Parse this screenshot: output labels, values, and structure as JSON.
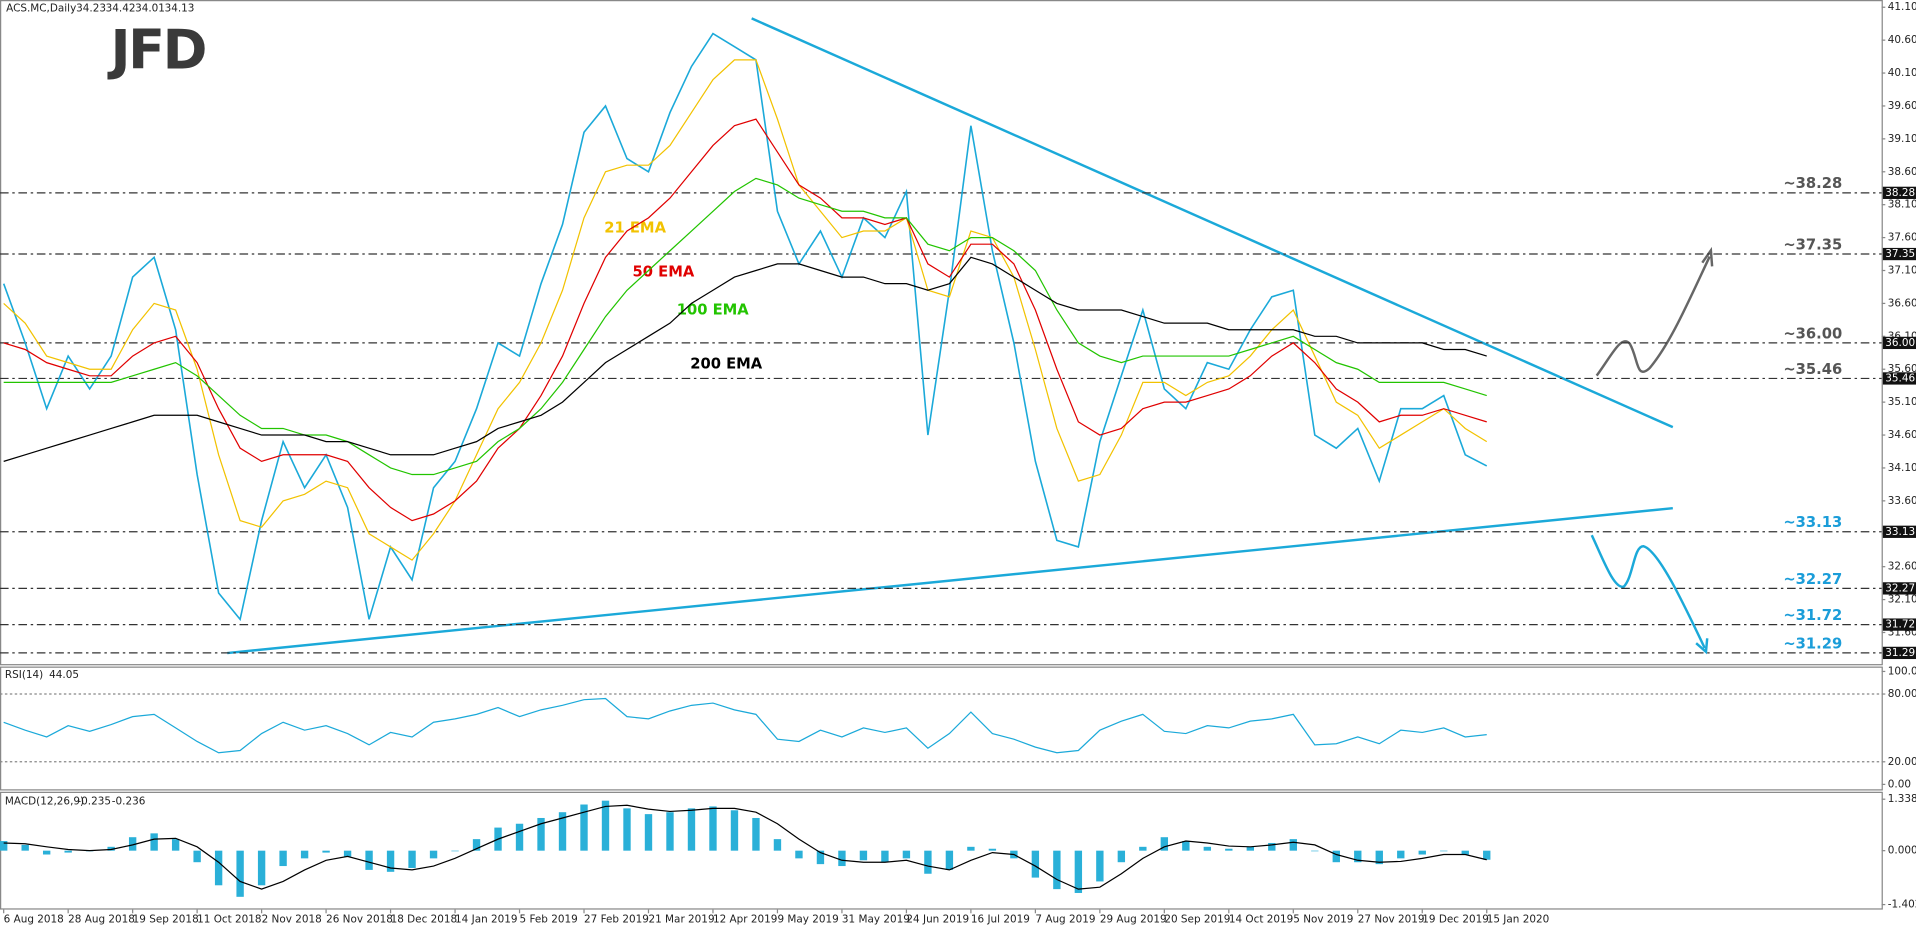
{
  "chart_data": [
    {
      "type": "line",
      "title": "ACS.MC,Daily",
      "logo": "JFD",
      "last_bar": {
        "open": 34.23,
        "high": 34.42,
        "low": 34.01,
        "close": 34.13
      },
      "categories": [
        "6 Aug 2018",
        null,
        null,
        "28 Aug 2018",
        null,
        null,
        "19 Sep 2018",
        null,
        null,
        "11 Oct 2018",
        null,
        null,
        "2 Nov 2018",
        null,
        null,
        "26 Nov 2018",
        null,
        null,
        "18 Dec 2018",
        null,
        null,
        "14 Jan 2019",
        null,
        null,
        "5 Feb 2019",
        null,
        null,
        "27 Feb 2019",
        null,
        null,
        "21 Mar 2019",
        null,
        null,
        "12 Apr 2019",
        null,
        null,
        "9 May 2019",
        null,
        null,
        "31 May 2019",
        null,
        null,
        "24 Jun 2019",
        null,
        null,
        "16 Jul 2019",
        null,
        null,
        "7 Aug 2019",
        null,
        null,
        "29 Aug 2019",
        null,
        null,
        "20 Sep 2019",
        null,
        null,
        "14 Oct 2019",
        null,
        null,
        "5 Nov 2019",
        null,
        null,
        "27 Nov 2019",
        null,
        null,
        "19 Dec 2019",
        null,
        null,
        "15 Jan 2020"
      ],
      "values": [
        36.9,
        36.0,
        35.0,
        35.8,
        35.3,
        35.8,
        37.0,
        37.3,
        36.2,
        34.0,
        32.2,
        31.8,
        33.3,
        34.5,
        33.8,
        34.3,
        33.5,
        31.8,
        32.9,
        32.4,
        33.8,
        34.2,
        35.0,
        36.0,
        35.8,
        36.9,
        37.8,
        39.2,
        39.6,
        38.8,
        38.6,
        39.5,
        40.2,
        40.7,
        40.5,
        40.3,
        38.0,
        37.2,
        37.7,
        37.0,
        37.9,
        37.6,
        38.3,
        34.6,
        36.8,
        39.3,
        37.4,
        36.0,
        34.2,
        33.0,
        32.9,
        34.5,
        35.5,
        36.5,
        35.3,
        35.0,
        35.7,
        35.6,
        36.2,
        36.7,
        36.8,
        34.6,
        34.4,
        34.7,
        33.9,
        35.0,
        35.0,
        35.2,
        34.3,
        34.13
      ],
      "color": "#1ba9d9",
      "series": [
        {
          "name": "21 EMA",
          "color": "#f2c200",
          "values": [
            36.6,
            36.3,
            35.8,
            35.7,
            35.6,
            35.6,
            36.2,
            36.6,
            36.5,
            35.6,
            34.3,
            33.3,
            33.2,
            33.6,
            33.7,
            33.9,
            33.8,
            33.1,
            32.9,
            32.7,
            33.1,
            33.6,
            34.3,
            35.0,
            35.4,
            36.0,
            36.8,
            37.9,
            38.6,
            38.7,
            38.7,
            39.0,
            39.5,
            40.0,
            40.3,
            40.3,
            39.4,
            38.4,
            38.0,
            37.6,
            37.7,
            37.7,
            37.9,
            36.8,
            36.7,
            37.7,
            37.6,
            37.0,
            35.9,
            34.7,
            33.9,
            34.0,
            34.6,
            35.4,
            35.4,
            35.2,
            35.4,
            35.5,
            35.8,
            36.2,
            36.5,
            35.8,
            35.1,
            34.9,
            34.4,
            34.6,
            34.8,
            35.0,
            34.7,
            34.5
          ]
        },
        {
          "name": "50 EMA",
          "color": "#e00000",
          "values": [
            36.0,
            35.9,
            35.7,
            35.6,
            35.5,
            35.5,
            35.8,
            36.0,
            36.1,
            35.7,
            35.0,
            34.4,
            34.2,
            34.3,
            34.3,
            34.3,
            34.2,
            33.8,
            33.5,
            33.3,
            33.4,
            33.6,
            33.9,
            34.4,
            34.7,
            35.2,
            35.8,
            36.6,
            37.3,
            37.7,
            37.9,
            38.2,
            38.6,
            39.0,
            39.3,
            39.4,
            38.9,
            38.4,
            38.2,
            37.9,
            37.9,
            37.8,
            37.9,
            37.2,
            37.0,
            37.5,
            37.5,
            37.2,
            36.5,
            35.6,
            34.8,
            34.6,
            34.7,
            35.0,
            35.1,
            35.1,
            35.2,
            35.3,
            35.5,
            35.8,
            36.0,
            35.7,
            35.3,
            35.1,
            34.8,
            34.9,
            34.9,
            35.0,
            34.9,
            34.8
          ]
        },
        {
          "name": "100 EMA",
          "color": "#22c400",
          "values": [
            35.4,
            35.4,
            35.4,
            35.4,
            35.4,
            35.4,
            35.5,
            35.6,
            35.7,
            35.5,
            35.2,
            34.9,
            34.7,
            34.7,
            34.6,
            34.6,
            34.5,
            34.3,
            34.1,
            34.0,
            34.0,
            34.1,
            34.2,
            34.5,
            34.7,
            35.0,
            35.4,
            35.9,
            36.4,
            36.8,
            37.1,
            37.4,
            37.7,
            38.0,
            38.3,
            38.5,
            38.4,
            38.2,
            38.1,
            38.0,
            38.0,
            37.9,
            37.9,
            37.5,
            37.4,
            37.6,
            37.6,
            37.4,
            37.1,
            36.5,
            36.0,
            35.8,
            35.7,
            35.8,
            35.8,
            35.8,
            35.8,
            35.8,
            35.9,
            36.0,
            36.1,
            35.9,
            35.7,
            35.6,
            35.4,
            35.4,
            35.4,
            35.4,
            35.3,
            35.2
          ]
        },
        {
          "name": "200 EMA",
          "color": "#000000",
          "values": [
            34.2,
            34.3,
            34.4,
            34.5,
            34.6,
            34.7,
            34.8,
            34.9,
            34.9,
            34.9,
            34.8,
            34.7,
            34.6,
            34.6,
            34.6,
            34.5,
            34.5,
            34.4,
            34.3,
            34.3,
            34.3,
            34.4,
            34.5,
            34.7,
            34.8,
            34.9,
            35.1,
            35.4,
            35.7,
            35.9,
            36.1,
            36.3,
            36.6,
            36.8,
            37.0,
            37.1,
            37.2,
            37.2,
            37.1,
            37.0,
            37.0,
            36.9,
            36.9,
            36.8,
            36.9,
            37.3,
            37.2,
            37.0,
            36.8,
            36.6,
            36.5,
            36.5,
            36.5,
            36.4,
            36.3,
            36.3,
            36.3,
            36.2,
            36.2,
            36.2,
            36.2,
            36.1,
            36.1,
            36.0,
            36.0,
            36.0,
            36.0,
            35.9,
            35.9,
            35.8
          ]
        }
      ],
      "levels": [
        {
          "value": 38.28,
          "label": "~38.28",
          "axis_label": "38.28",
          "color": "#555555"
        },
        {
          "value": 37.35,
          "label": "~37.35",
          "axis_label": "37.35",
          "color": "#555555"
        },
        {
          "value": 36,
          "label": "~36.00",
          "axis_label": "36.00",
          "color": "#555555"
        },
        {
          "value": 35.46,
          "label": "~35.46",
          "axis_label": "35.46",
          "color": "#555555"
        },
        {
          "value": 33.13,
          "label": "~33.13",
          "axis_label": "33.13",
          "color": "#1b9dd9"
        },
        {
          "value": 32.27,
          "label": "~32.27",
          "axis_label": "32.27",
          "color": "#1b9dd9"
        },
        {
          "value": 31.72,
          "label": "~31.72",
          "axis_label": "31.72",
          "color": "#1b9dd9"
        },
        {
          "value": 31.29,
          "label": "~31.29",
          "axis_label": "31.29",
          "color": "#1b9dd9"
        }
      ],
      "ylim": [
        31.12,
        41.21
      ],
      "yticks": [
        {
          "value": 41.1,
          "label": "41.10"
        },
        {
          "value": 40.6,
          "label": "40.60"
        },
        {
          "value": 40.1,
          "label": "40.10"
        },
        {
          "value": 39.6,
          "label": "39.60"
        },
        {
          "value": 39.1,
          "label": "39.10"
        },
        {
          "value": 38.6,
          "label": "38.60"
        },
        {
          "value": 38.1,
          "label": "38.10"
        },
        {
          "value": 37.6,
          "label": "37.60"
        },
        {
          "value": 37.1,
          "label": "37.10"
        },
        {
          "value": 36.6,
          "label": "36.60"
        },
        {
          "value": 36.1,
          "label": "36.10"
        },
        {
          "value": 35.6,
          "label": "35.60"
        },
        {
          "value": 35.1,
          "label": "35.10"
        },
        {
          "value": 34.6,
          "label": "34.60"
        },
        {
          "value": 34.1,
          "label": "34.10"
        },
        {
          "value": 33.6,
          "label": "33.60"
        },
        {
          "value": 33.1,
          "label": "33.10"
        },
        {
          "value": 32.6,
          "label": "32.60"
        },
        {
          "value": 32.1,
          "label": "32.10"
        },
        {
          "value": 31.6,
          "label": "31.60"
        }
      ]
    },
    {
      "type": "line",
      "title": "RSI(14)",
      "color": "#1ba9d9",
      "values": [
        55,
        48,
        42,
        52,
        47,
        53,
        60,
        62,
        50,
        38,
        28,
        30,
        45,
        55,
        48,
        52,
        45,
        35,
        46,
        42,
        55,
        58,
        62,
        68,
        60,
        66,
        70,
        75,
        76,
        60,
        58,
        65,
        70,
        72,
        66,
        62,
        40,
        38,
        48,
        42,
        50,
        46,
        50,
        32,
        45,
        64,
        45,
        40,
        33,
        28,
        30,
        48,
        56,
        62,
        47,
        45,
        52,
        50,
        56,
        58,
        62,
        35,
        36,
        42,
        36,
        48,
        46,
        50,
        42,
        44.05
      ],
      "ylim": [
        0,
        100
      ],
      "yticks": [
        {
          "value": 100,
          "label": "100.00"
        },
        {
          "value": 80,
          "label": "80.00"
        },
        {
          "value": 20,
          "label": "20.00"
        },
        {
          "value": 0,
          "label": "0.00"
        }
      ],
      "levels": [
        80,
        20
      ]
    },
    {
      "type": "macd",
      "title": "MACD(12,26,9)",
      "histogram": {
        "color": "#2ab0d8",
        "values": [
          0.25,
          0.15,
          -0.1,
          -0.05,
          0.0,
          0.1,
          0.35,
          0.45,
          0.3,
          -0.3,
          -0.9,
          -1.2,
          -0.9,
          -0.4,
          -0.2,
          -0.05,
          -0.15,
          -0.5,
          -0.55,
          -0.45,
          -0.2,
          0.0,
          0.3,
          0.6,
          0.7,
          0.85,
          1.0,
          1.2,
          1.3,
          1.1,
          0.95,
          1.0,
          1.1,
          1.15,
          1.05,
          0.85,
          0.3,
          -0.2,
          -0.35,
          -0.4,
          -0.25,
          -0.3,
          -0.2,
          -0.6,
          -0.5,
          0.1,
          0.05,
          -0.2,
          -0.7,
          -1.0,
          -1.1,
          -0.8,
          -0.3,
          0.1,
          0.35,
          0.25,
          0.1,
          0.05,
          0.1,
          0.2,
          0.3,
          0.0,
          -0.3,
          -0.3,
          -0.35,
          -0.2,
          -0.1,
          0.0,
          -0.1,
          -0.235
        ]
      },
      "signal": {
        "color": "#000000",
        "values": [
          0.2,
          0.18,
          0.1,
          0.03,
          0.0,
          0.03,
          0.15,
          0.3,
          0.32,
          0.1,
          -0.3,
          -0.8,
          -1.0,
          -0.8,
          -0.5,
          -0.25,
          -0.15,
          -0.3,
          -0.45,
          -0.5,
          -0.4,
          -0.2,
          0.05,
          0.3,
          0.5,
          0.7,
          0.85,
          1.0,
          1.15,
          1.18,
          1.08,
          1.02,
          1.05,
          1.1,
          1.1,
          1.0,
          0.7,
          0.3,
          -0.05,
          -0.25,
          -0.3,
          -0.3,
          -0.25,
          -0.4,
          -0.5,
          -0.25,
          -0.05,
          -0.1,
          -0.4,
          -0.75,
          -1.0,
          -0.95,
          -0.6,
          -0.2,
          0.1,
          0.25,
          0.2,
          0.12,
          0.1,
          0.15,
          0.22,
          0.15,
          -0.1,
          -0.25,
          -0.3,
          -0.28,
          -0.2,
          -0.1,
          -0.1,
          -0.236
        ]
      },
      "ylim": [
        -1.5,
        1.5
      ],
      "yticks": [
        1.338,
        {
          "value": 0,
          "label": "0.000"
        },
        -1.402
      ]
    }
  ]
}
